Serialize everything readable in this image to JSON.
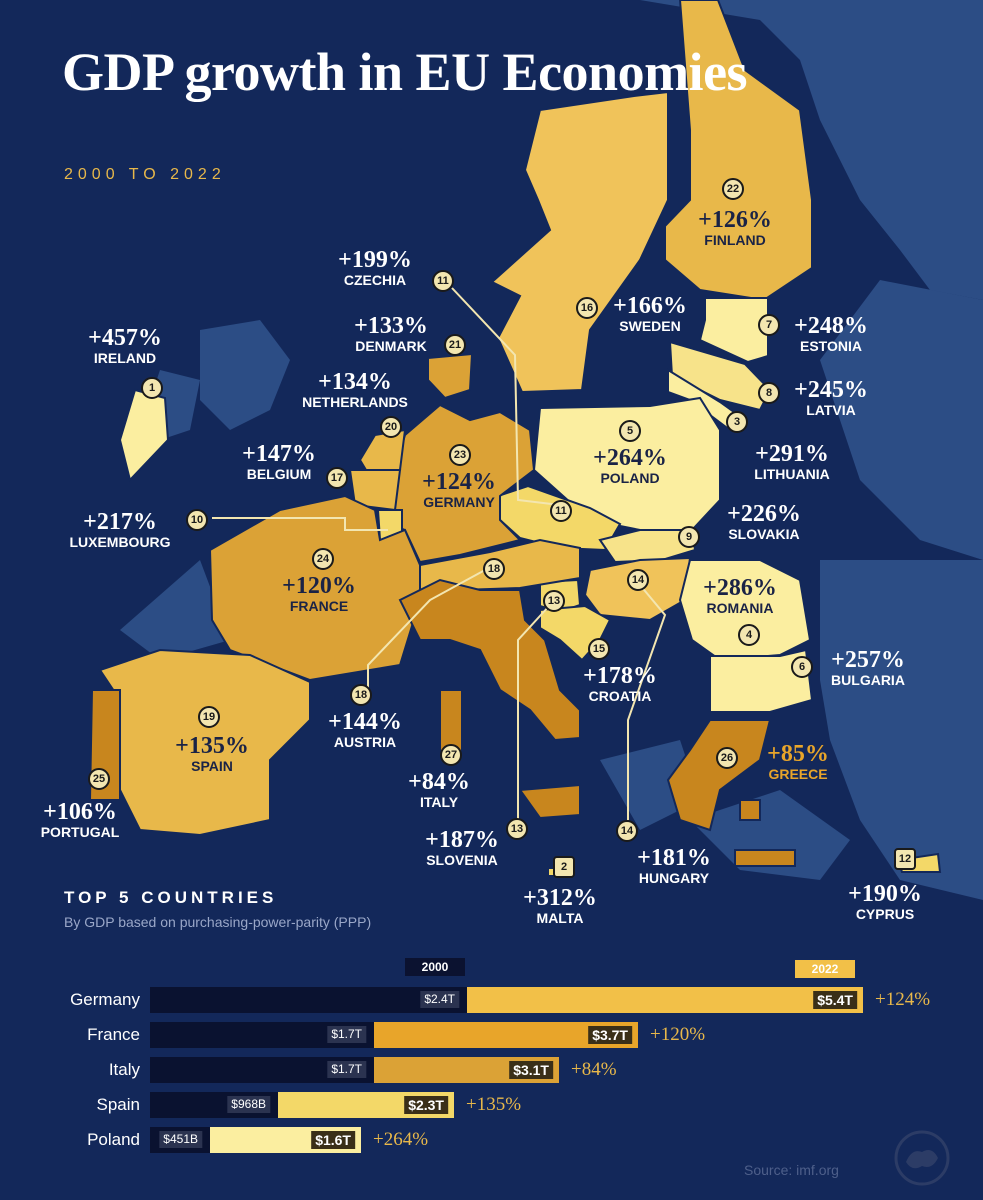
{
  "title": "GDP growth in EU Economies",
  "subtitle": "2000 TO 2022",
  "colors": {
    "background": "#13285a",
    "very_high": "#fbeea0",
    "high": "#f3d868",
    "medium": "#e8b84a",
    "low": "#dba236",
    "lowest": "#c8861e",
    "accent": "#e8b84a"
  },
  "countries": [
    {
      "rank": "1",
      "name": "IRELAND",
      "growth": "+457%"
    },
    {
      "rank": "2",
      "name": "MALTA",
      "growth": "+312%"
    },
    {
      "rank": "3",
      "name": "LITHUANIA",
      "growth": "+291%"
    },
    {
      "rank": "4",
      "name": "ROMANIA",
      "growth": "+286%"
    },
    {
      "rank": "5",
      "name": "POLAND",
      "growth": "+264%"
    },
    {
      "rank": "6",
      "name": "BULGARIA",
      "growth": "+257%"
    },
    {
      "rank": "7",
      "name": "ESTONIA",
      "growth": "+248%"
    },
    {
      "rank": "8",
      "name": "LATVIA",
      "growth": "+245%"
    },
    {
      "rank": "9",
      "name": "SLOVAKIA",
      "growth": "+226%"
    },
    {
      "rank": "10",
      "name": "LUXEMBOURG",
      "growth": "+217%"
    },
    {
      "rank": "11",
      "name": "CZECHIA",
      "growth": "+199%"
    },
    {
      "rank": "12",
      "name": "CYPRUS",
      "growth": "+190%"
    },
    {
      "rank": "13",
      "name": "SLOVENIA",
      "growth": "+187%"
    },
    {
      "rank": "14",
      "name": "HUNGARY",
      "growth": "+181%"
    },
    {
      "rank": "15",
      "name": "CROATIA",
      "growth": "+178%"
    },
    {
      "rank": "16",
      "name": "SWEDEN",
      "growth": "+166%"
    },
    {
      "rank": "17",
      "name": "BELGIUM",
      "growth": "+147%"
    },
    {
      "rank": "18",
      "name": "AUSTRIA",
      "growth": "+144%"
    },
    {
      "rank": "19",
      "name": "SPAIN",
      "growth": "+135%"
    },
    {
      "rank": "20",
      "name": "NETHERLANDS",
      "growth": "+134%"
    },
    {
      "rank": "21",
      "name": "DENMARK",
      "growth": "+133%"
    },
    {
      "rank": "22",
      "name": "FINLAND",
      "growth": "+126%"
    },
    {
      "rank": "23",
      "name": "GERMANY",
      "growth": "+124%"
    },
    {
      "rank": "24",
      "name": "FRANCE",
      "growth": "+120%"
    },
    {
      "rank": "25",
      "name": "PORTUGAL",
      "growth": "+106%"
    },
    {
      "rank": "26",
      "name": "GREECE",
      "growth": "+85%"
    },
    {
      "rank": "27",
      "name": "ITALY",
      "growth": "+84%"
    }
  ],
  "top5": {
    "heading": "TOP 5 COUNTRIES",
    "subheading": "By GDP based on purchasing-power-parity (PPP)",
    "year_start": "2000",
    "year_end": "2022",
    "rows": [
      {
        "country": "Germany",
        "gdp_2000": "$2.4T",
        "gdp_2022": "$5.4T",
        "growth": "+124%",
        "v2000": 2.4,
        "v2022": 5.4
      },
      {
        "country": "France",
        "gdp_2000": "$1.7T",
        "gdp_2022": "$3.7T",
        "growth": "+120%",
        "v2000": 1.7,
        "v2022": 3.7
      },
      {
        "country": "Italy",
        "gdp_2000": "$1.7T",
        "gdp_2022": "$3.1T",
        "growth": "+84%",
        "v2000": 1.7,
        "v2022": 3.1
      },
      {
        "country": "Spain",
        "gdp_2000": "$968B",
        "gdp_2022": "$2.3T",
        "growth": "+135%",
        "v2000": 0.968,
        "v2022": 2.3
      },
      {
        "country": "Poland",
        "gdp_2000": "$451B",
        "gdp_2022": "$1.6T",
        "growth": "+264%",
        "v2000": 0.451,
        "v2022": 1.6
      }
    ]
  },
  "source": "Source: imf.org"
}
